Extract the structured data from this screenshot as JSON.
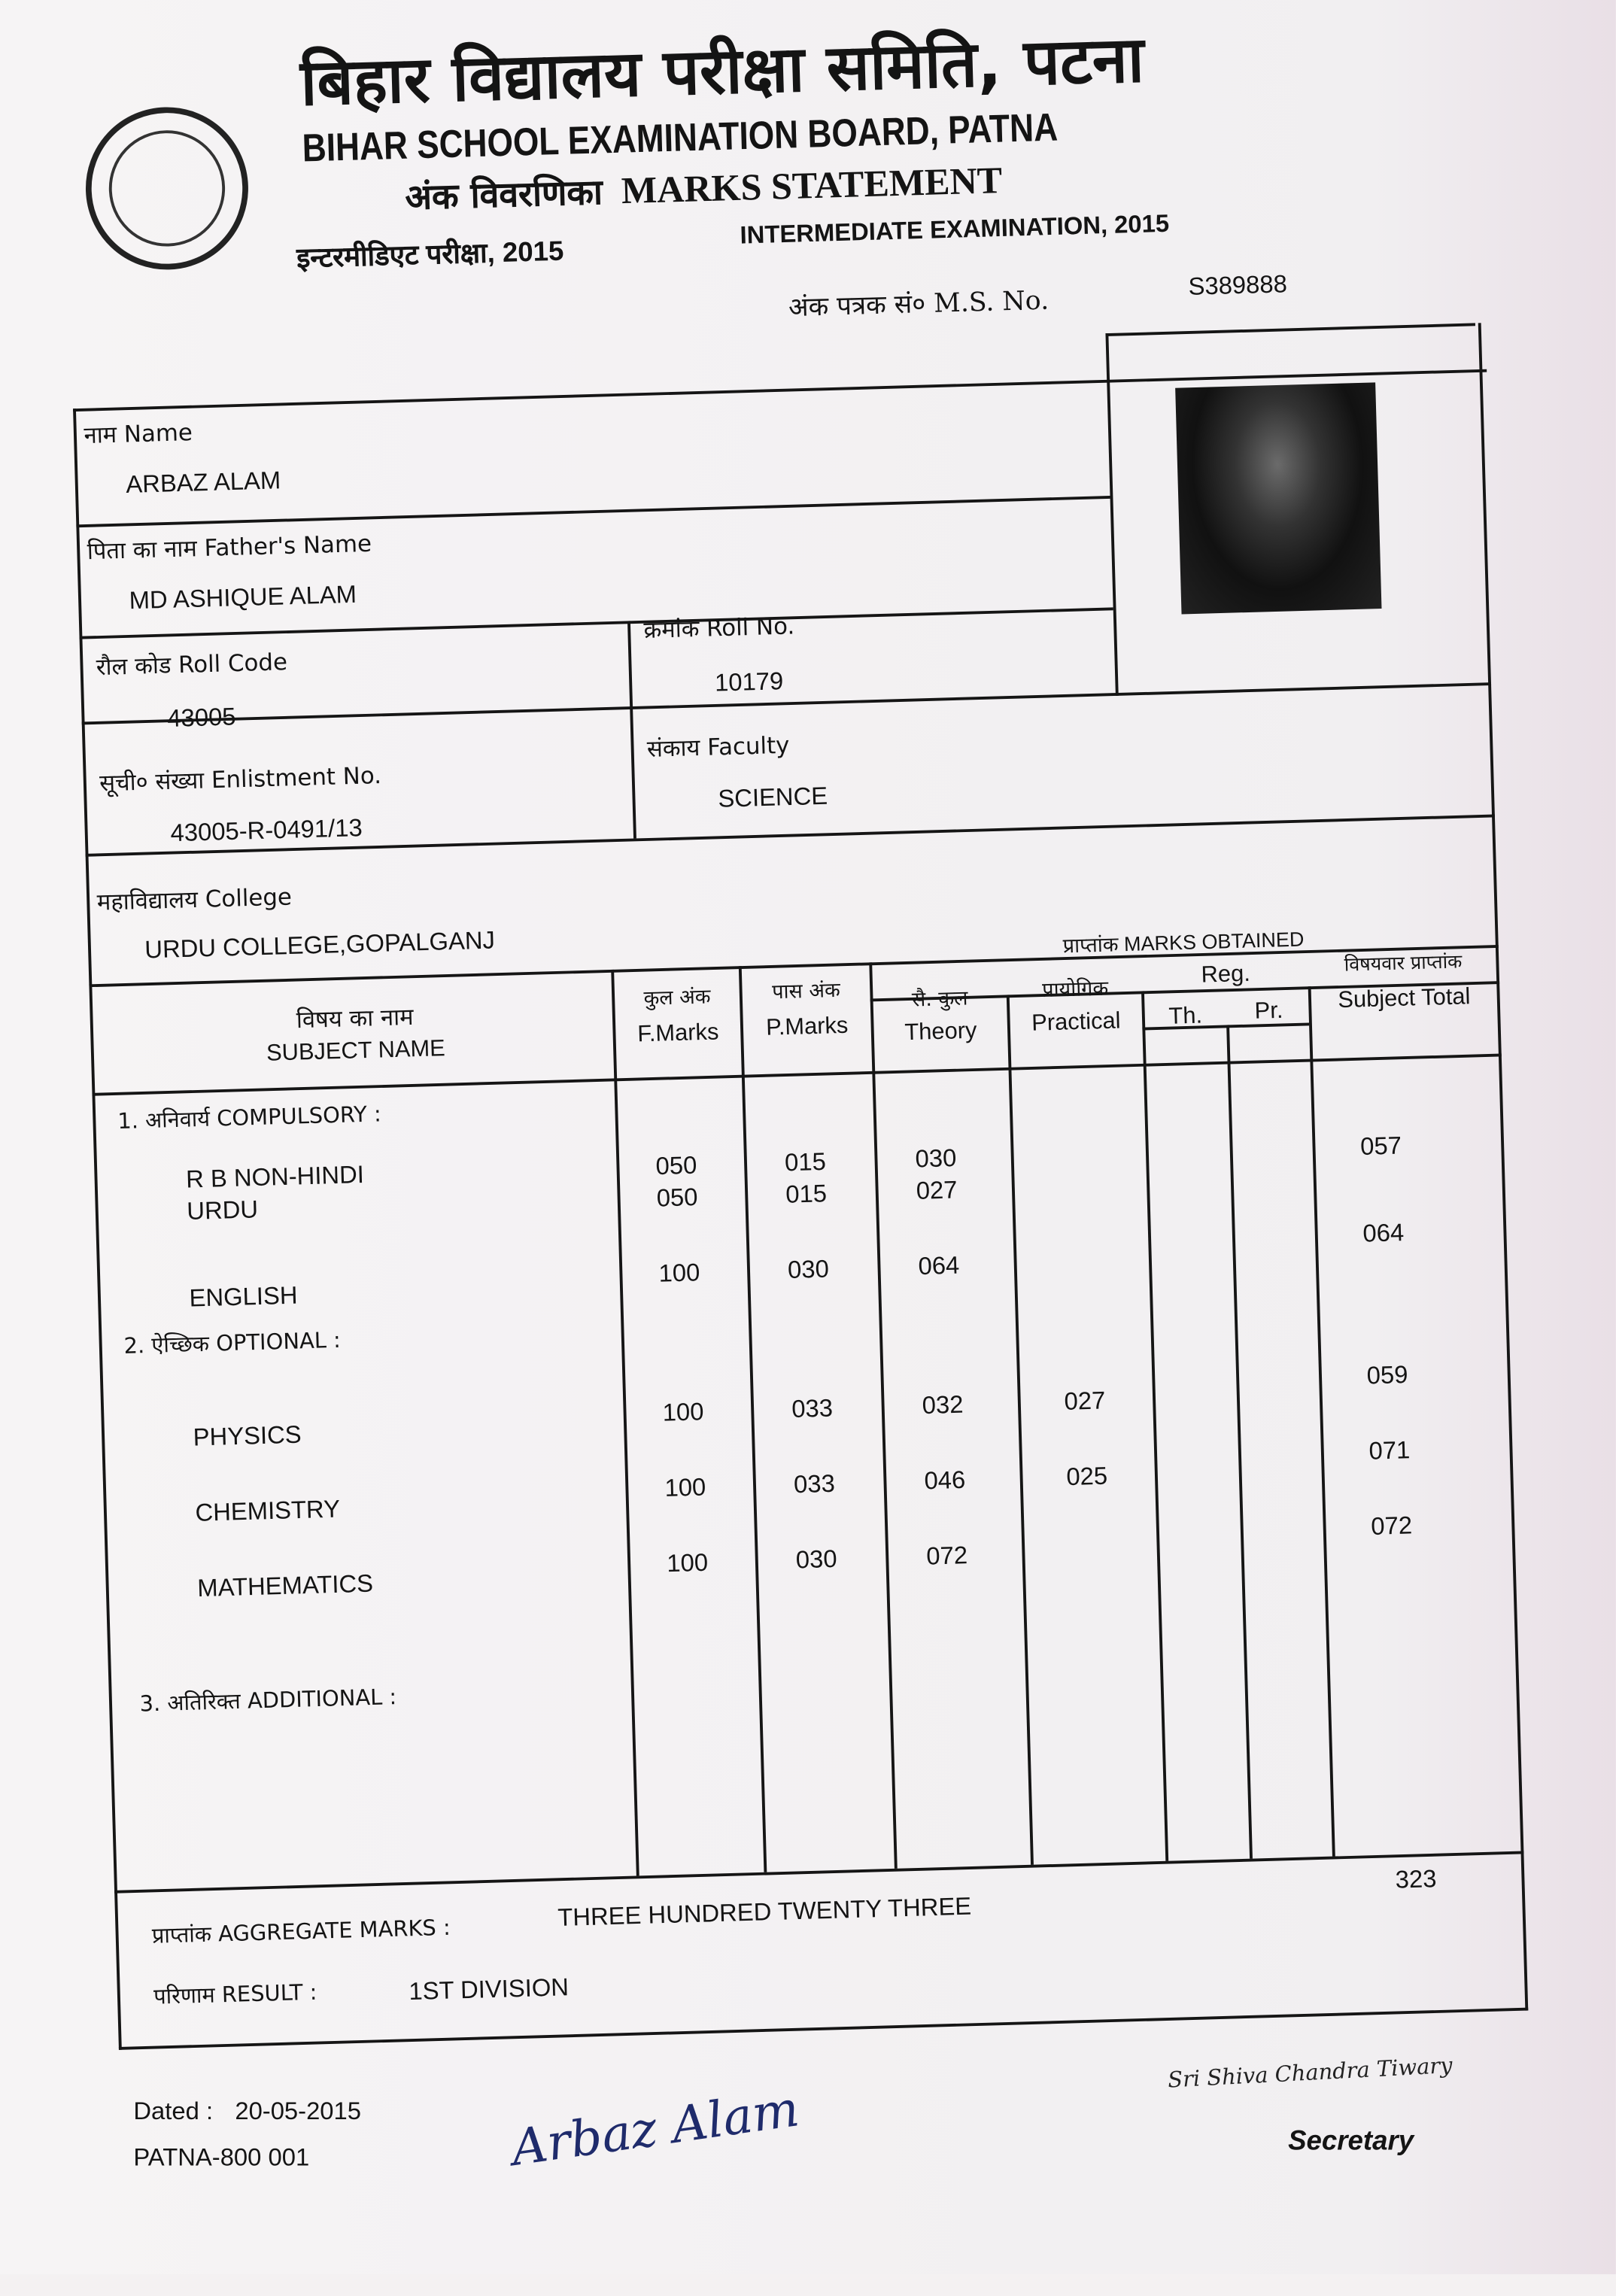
{
  "header": {
    "title_hindi": "बिहार विद्यालय परीक्षा समिति, पटना",
    "title_english": "BIHAR SCHOOL EXAMINATION BOARD, PATNA",
    "statement_hindi": "अंक विवरणिका",
    "statement_english": "MARKS STATEMENT",
    "exam_hindi": "इन्टरमीडिएट परीक्षा, 2015",
    "exam_english": "INTERMEDIATE EXAMINATION, 2015",
    "ms_no_label": "अंक पत्रक सं० M.S. No.",
    "ms_no": "S389888"
  },
  "student": {
    "name_label": "नाम  Name",
    "name": "ARBAZ ALAM",
    "father_label": "पिता का नाम  Father's Name",
    "father": "MD ASHIQUE ALAM",
    "roll_code_label": "रौल कोड Roll Code",
    "roll_code": "43005",
    "roll_no_label": "क्रमांक Roll No.",
    "roll_no": "10179",
    "enlistment_label": "सूची० संख्या Enlistment No.",
    "enlistment": "43005-R-0491/13",
    "faculty_label": "संकाय Faculty",
    "faculty": "SCIENCE",
    "college_label": "महाविद्यालय College",
    "college": "URDU COLLEGE,GOPALGANJ"
  },
  "table": {
    "headers": {
      "subject_hi": "विषय का नाम",
      "subject_en": "SUBJECT NAME",
      "fmarks_hi": "कुल अंक",
      "fmarks_en": "F.Marks",
      "pmarks_hi": "पास अंक",
      "pmarks_en": "P.Marks",
      "obtained": "प्राप्तांक MARKS OBTAINED",
      "theory_hi": "सै. कुल",
      "theory_en": "Theory",
      "practical_hi": "प्रायोगिक",
      "practical_en": "Practical",
      "reg": "Reg.",
      "th": "Th.",
      "pr": "Pr.",
      "total_hi": "विषयवार प्राप्तांक",
      "total_en": "Subject Total"
    },
    "sections": {
      "compulsory": "1. अनिवार्य  COMPULSORY :",
      "optional": "2. ऐच्छिक OPTIONAL :",
      "additional": "3. अतिरिक्त  ADDITIONAL :"
    },
    "rows": [
      {
        "subject": "R B NON-HINDI",
        "f": "050",
        "p": "015",
        "theory": "030",
        "practical": "",
        "total": "057"
      },
      {
        "subject": "URDU",
        "f": "050",
        "p": "015",
        "theory": "027",
        "practical": "",
        "total": ""
      },
      {
        "subject": "ENGLISH",
        "f": "100",
        "p": "030",
        "theory": "064",
        "practical": "",
        "total": "064"
      },
      {
        "subject": "PHYSICS",
        "f": "100",
        "p": "033",
        "theory": "032",
        "practical": "027",
        "total": "059"
      },
      {
        "subject": "CHEMISTRY",
        "f": "100",
        "p": "033",
        "theory": "046",
        "practical": "025",
        "total": "071"
      },
      {
        "subject": "MATHEMATICS",
        "f": "100",
        "p": "030",
        "theory": "072",
        "practical": "",
        "total": "072"
      }
    ]
  },
  "result": {
    "aggregate_label": "प्राप्तांक AGGREGATE MARKS :",
    "aggregate_words": "THREE HUNDRED TWENTY THREE",
    "aggregate": "323",
    "result_label": "परिणाम RESULT  :",
    "result": "1ST DIVISION"
  },
  "footer": {
    "dated_label": "Dated :",
    "dated": "20-05-2015",
    "place": "PATNA-800 001",
    "student_signature": "Arbaz Alam",
    "secretary_signature": "Sri Shiva Chandra Tiwary",
    "secretary": "Secretary"
  }
}
